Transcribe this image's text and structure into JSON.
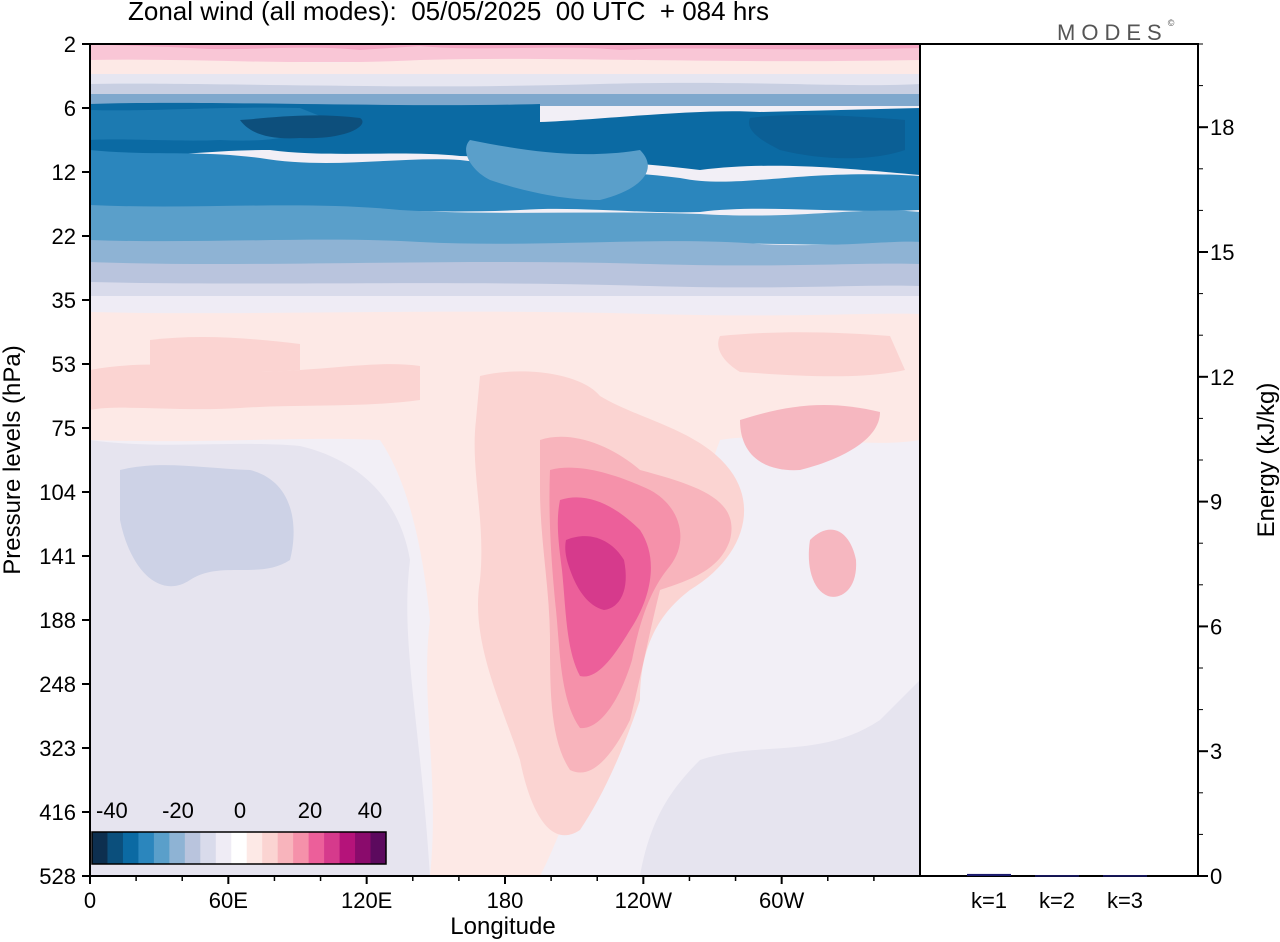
{
  "header": {
    "title": "Zonal wind (all modes):  05/05/2025  00 UTC  + 084 hrs",
    "brand": "MODES",
    "brand_mark": "©"
  },
  "chart_data": [
    {
      "type": "heatmap",
      "title": "Zonal wind (all modes):  05/05/2025  00 UTC  + 084 hrs",
      "xlabel": "Longitude",
      "ylabel": "Pressure levels (hPa)",
      "x_ticks": [
        "0",
        "60E",
        "120E",
        "180",
        "120W",
        "60W"
      ],
      "y_ticks": [
        "2",
        "6",
        "12",
        "22",
        "35",
        "53",
        "75",
        "104",
        "141",
        "188",
        "248",
        "323",
        "416",
        "528"
      ],
      "colorbar": {
        "ticks": [
          "-40",
          "-20",
          "0",
          "20",
          "40"
        ],
        "colors": [
          "#0d2f4f",
          "#0b4f7c",
          "#0b6aa3",
          "#2b86bd",
          "#5a9fca",
          "#8eb3d4",
          "#b9c4dd",
          "#d9dbeb",
          "#efecf5",
          "#ffffff",
          "#fde9e6",
          "#fbd4d2",
          "#f8b4bc",
          "#f591aa",
          "#ec5f9a",
          "#d63a8c",
          "#b5137a",
          "#8a0b6c",
          "#5c0a5e"
        ]
      },
      "contour_levels": [
        {
          "level": "upper-jet-pink",
          "color": "#f6a8ba"
        },
        {
          "level": "easterly-core",
          "color": "#0b6aa3"
        }
      ]
    },
    {
      "type": "bar",
      "ylabel": "Energy (kJ/kg)",
      "categories": [
        "k=1",
        "k=2",
        "k=3"
      ],
      "values": [
        0.05,
        0.02,
        0.02
      ],
      "ylim": [
        0,
        20
      ],
      "y_ticks": [
        "0",
        "3",
        "6",
        "9",
        "12",
        "15",
        "18"
      ],
      "bar_color": "#1c1c6e"
    }
  ]
}
